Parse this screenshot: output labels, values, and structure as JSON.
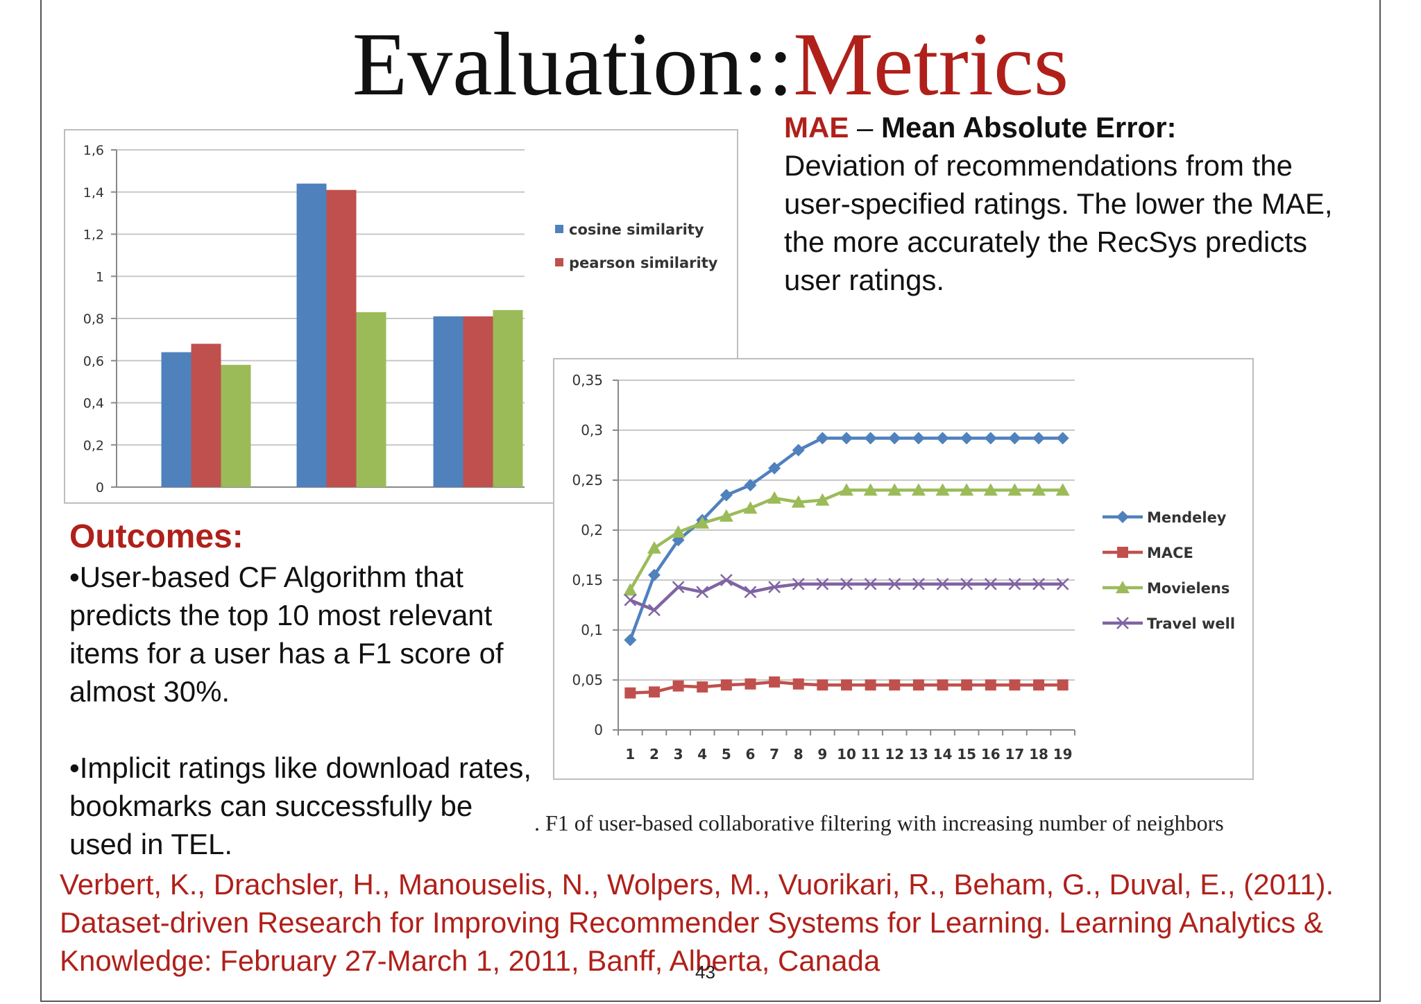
{
  "slide": {
    "title_main": "Evaluation::",
    "title_accent": "Metrics",
    "page_number": "43"
  },
  "mae": {
    "key": "MAE",
    "dash": " – ",
    "name": "Mean Absolute Error:",
    "description": "Deviation of recommendations from the user-specified ratings. The lower the MAE, the more accurately the RecSys predicts user ratings."
  },
  "outcomes": {
    "heading": "Outcomes:",
    "bullet_1": "•User-based CF Algorithm that predicts the top 10 most relevant items for a user has a F1 score of almost 30%.",
    "bullet_2": "•Implicit ratings like download rates, bookmarks can successfully be used in TEL."
  },
  "caption": ". F1 of user-based collaborative filtering with increasing number of neighbors",
  "reference": "Verbert, K., Drachsler, H., Manouselis, N., Wolpers, M., Vuorikari, R., Beham, G., Duval, E., (2011). Dataset-driven Research for Improving Recommender Systems for Learning. Learning Analytics & Knowledge: February 27-March 1, 2011, Banff, Alberta, Canada",
  "chart_data": [
    {
      "type": "bar",
      "ylim": [
        0,
        1.6
      ],
      "y_ticks": [
        "0",
        "0,2",
        "0,4",
        "0,6",
        "0,8",
        "1",
        "1,2",
        "1,4",
        "1,6"
      ],
      "series": [
        {
          "name": "cosine similarity",
          "color": "#4f81bd",
          "values": [
            0.64,
            1.44,
            0.81
          ]
        },
        {
          "name": "pearson similarity",
          "color": "#c0504d",
          "values": [
            0.68,
            1.41,
            0.81
          ]
        },
        {
          "color": "#9bbb59",
          "values": [
            0.58,
            0.83,
            0.84
          ]
        }
      ],
      "legend": "right"
    },
    {
      "type": "line",
      "x": [
        1,
        2,
        3,
        4,
        5,
        6,
        7,
        8,
        9,
        10,
        11,
        12,
        13,
        14,
        15,
        16,
        17,
        18,
        19
      ],
      "ylim": [
        0,
        0.35
      ],
      "y_ticks": [
        "0",
        "0,05",
        "0,1",
        "0,15",
        "0,2",
        "0,25",
        "0,3",
        "0,35"
      ],
      "series": [
        {
          "name": "Mendeley",
          "color": "#4f81bd",
          "marker": "diamond",
          "values": [
            0.09,
            0.155,
            0.19,
            0.21,
            0.235,
            0.245,
            0.262,
            0.28,
            0.292,
            0.292,
            0.292,
            0.292,
            0.292,
            0.292,
            0.292,
            0.292,
            0.292,
            0.292,
            0.292
          ]
        },
        {
          "name": "MACE",
          "color": "#c0504d",
          "marker": "square",
          "values": [
            0.037,
            0.038,
            0.044,
            0.043,
            0.045,
            0.046,
            0.048,
            0.046,
            0.045,
            0.045,
            0.045,
            0.045,
            0.045,
            0.045,
            0.045,
            0.045,
            0.045,
            0.045,
            0.045
          ]
        },
        {
          "name": "Movielens",
          "color": "#9bbb59",
          "marker": "triangle",
          "values": [
            0.14,
            0.182,
            0.198,
            0.207,
            0.214,
            0.222,
            0.232,
            0.228,
            0.23,
            0.24,
            0.24,
            0.24,
            0.24,
            0.24,
            0.24,
            0.24,
            0.24,
            0.24,
            0.24
          ]
        },
        {
          "name": "Travel well",
          "color": "#8064a2",
          "marker": "x",
          "values": [
            0.13,
            0.12,
            0.143,
            0.138,
            0.15,
            0.138,
            0.143,
            0.146,
            0.146,
            0.146,
            0.146,
            0.146,
            0.146,
            0.146,
            0.146,
            0.146,
            0.146,
            0.146,
            0.146
          ]
        }
      ],
      "legend": "right"
    }
  ]
}
